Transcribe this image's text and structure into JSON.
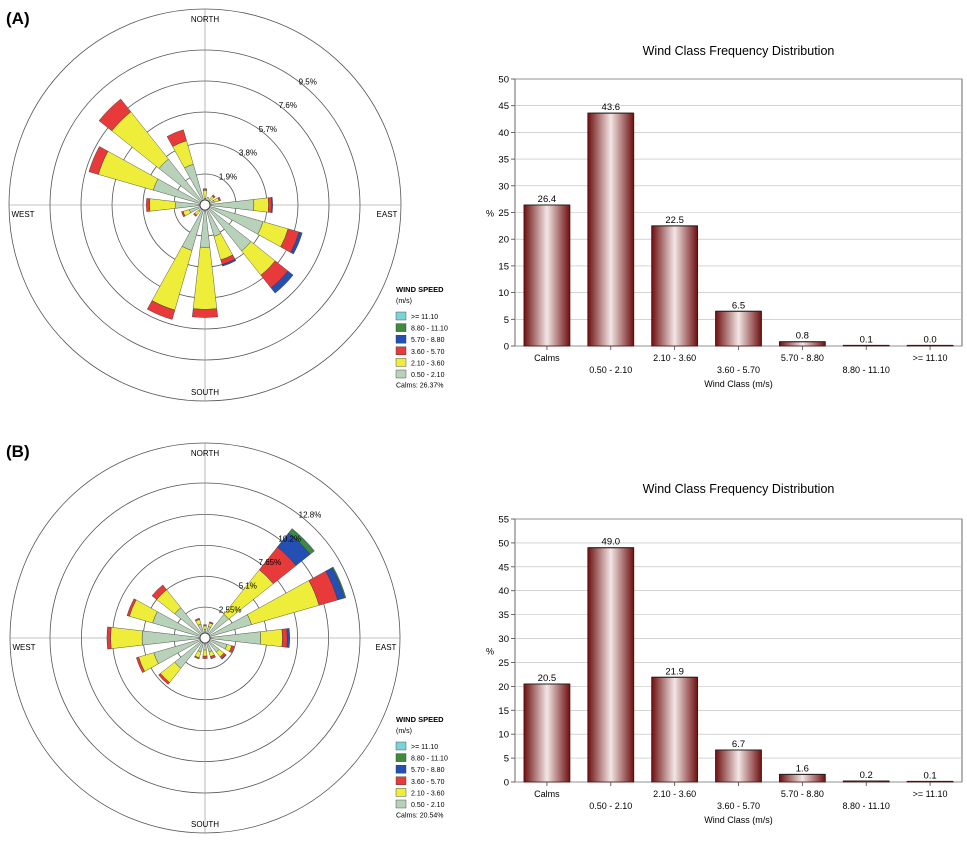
{
  "colors": {
    "s0": "#b7d2b9",
    "s1": "#eeee3a",
    "s2": "#e83a3a",
    "s3": "#2450b4",
    "s4": "#3f8a3f",
    "s5": "#7ad3d8",
    "bar_dark": "#6e1010",
    "bar_light": "#f3e6e6"
  },
  "chart_data": [
    {
      "type": "windrose",
      "panel_label": "(A)",
      "directions": [
        "NORTH",
        "EAST",
        "SOUTH",
        "WEST"
      ],
      "ring_labels": [
        "1.9%",
        "3.8%",
        "5.7%",
        "7.6%",
        "9.5%"
      ],
      "ring_values": [
        1.9,
        3.8,
        5.7,
        7.6,
        9.5
      ],
      "max_value": 9.5,
      "legend_title_1": "WIND SPEED",
      "legend_title_2": "(m/s)",
      "speed_classes": [
        ">= 11.10",
        "8.80 - 11.10",
        "5.70 - 8.80",
        "3.60 - 5.70",
        "2.10 - 3.60",
        "0.50 - 2.10"
      ],
      "calms": "Calms: 26.37%",
      "sectors": [
        {
          "dir": 0,
          "values": [
            0.4,
            0.5,
            0.1,
            0,
            0,
            0
          ]
        },
        {
          "dir": 22.5,
          "values": [
            0.3,
            0.2,
            0,
            0,
            0,
            0
          ]
        },
        {
          "dir": 45,
          "values": [
            0.4,
            0.3,
            0.1,
            0,
            0,
            0
          ]
        },
        {
          "dir": 67.5,
          "values": [
            0.6,
            0.3,
            0.1,
            0,
            0,
            0
          ]
        },
        {
          "dir": 90,
          "values": [
            3.0,
            0.9,
            0.2,
            0.05,
            0,
            0
          ]
        },
        {
          "dir": 112.5,
          "values": [
            3.7,
            1.6,
            0.7,
            0.2,
            0,
            0
          ]
        },
        {
          "dir": 135,
          "values": [
            3.6,
            1.9,
            1.0,
            0.4,
            0,
            0
          ]
        },
        {
          "dir": 157.5,
          "values": [
            2.0,
            1.5,
            0.3,
            0.1,
            0,
            0
          ]
        },
        {
          "dir": 180,
          "values": [
            2.6,
            3.8,
            0.5,
            0,
            0,
            0
          ]
        },
        {
          "dir": 202.5,
          "values": [
            2.9,
            3.8,
            0.6,
            0,
            0,
            0
          ]
        },
        {
          "dir": 225,
          "values": [
            0.5,
            0.3,
            0.1,
            0,
            0,
            0
          ]
        },
        {
          "dir": 247.5,
          "values": [
            1.0,
            0.4,
            0.1,
            0,
            0,
            0
          ]
        },
        {
          "dir": 270,
          "values": [
            1.8,
            1.6,
            0.2,
            0,
            0,
            0
          ]
        },
        {
          "dir": 292.5,
          "values": [
            3.3,
            3.5,
            0.6,
            0,
            0,
            0
          ]
        },
        {
          "dir": 315,
          "values": [
            3.6,
            3.7,
            1.0,
            0,
            0,
            0
          ]
        },
        {
          "dir": 337.5,
          "values": [
            2.6,
            1.5,
            0.7,
            0,
            0,
            0
          ]
        }
      ]
    },
    {
      "type": "bar",
      "title": "Wind Class Frequency Distribution",
      "xlabel": "Wind Class (m/s)",
      "ylabel": "%",
      "categories": [
        "Calms",
        "0.50 - 2.10",
        "2.10 - 3.60",
        "3.60 - 5.70",
        "5.70 - 8.80",
        "8.80 - 11.10",
        ">= 11.10"
      ],
      "values": [
        26.4,
        43.6,
        22.5,
        6.5,
        0.8,
        0.1,
        0.0
      ],
      "value_labels": [
        "26.4",
        "43.6",
        "22.5",
        "6.5",
        "0.8",
        "0.1",
        "0.0"
      ],
      "ylim": [
        0,
        50
      ],
      "yticks": [
        0,
        5,
        10,
        15,
        20,
        25,
        30,
        35,
        40,
        45,
        50
      ],
      "grid": true
    },
    {
      "type": "windrose",
      "panel_label": "(B)",
      "directions": [
        "NORTH",
        "EAST",
        "SOUTH",
        "WEST"
      ],
      "ring_labels": [
        "2.55%",
        "5.1%",
        "7.65%",
        "10.2%",
        "12.8%"
      ],
      "ring_values": [
        2.55,
        5.1,
        7.65,
        10.2,
        12.8
      ],
      "max_value": 12.8,
      "legend_title_1": "WIND SPEED",
      "legend_title_2": "(m/s)",
      "speed_classes": [
        ">= 11.10",
        "8.80 - 11.10",
        "5.70 - 8.80",
        "3.60 - 5.70",
        "2.10 - 3.60",
        "0.50 - 2.10"
      ],
      "calms": "Calms: 20.54%",
      "sectors": [
        {
          "dir": 0,
          "values": [
            0.7,
            0.3,
            0.1,
            0,
            0,
            0
          ]
        },
        {
          "dir": 22.5,
          "values": [
            1.0,
            0.3,
            0.1,
            0,
            0,
            0
          ]
        },
        {
          "dir": 45,
          "values": [
            2.5,
            4.7,
            2.4,
            1.5,
            0.4,
            0.05
          ]
        },
        {
          "dir": 67.5,
          "values": [
            4.0,
            5.8,
            1.6,
            0.6,
            0.1,
            0
          ]
        },
        {
          "dir": 90,
          "values": [
            4.6,
            1.8,
            0.4,
            0.2,
            0,
            0
          ]
        },
        {
          "dir": 112.5,
          "values": [
            1.9,
            0.4,
            0.2,
            0,
            0,
            0
          ]
        },
        {
          "dir": 135,
          "values": [
            1.5,
            0.5,
            0.2,
            0.05,
            0,
            0
          ]
        },
        {
          "dir": 157.5,
          "values": [
            1.2,
            0.4,
            0.2,
            0,
            0,
            0
          ]
        },
        {
          "dir": 180,
          "values": [
            1.0,
            0.5,
            0.2,
            0,
            0,
            0
          ]
        },
        {
          "dir": 202.5,
          "values": [
            1.2,
            0.5,
            0.1,
            0,
            0,
            0
          ]
        },
        {
          "dir": 225,
          "values": [
            3.2,
            1.5,
            0.2,
            0,
            0,
            0
          ]
        },
        {
          "dir": 247.5,
          "values": [
            4.4,
            1.3,
            0.2,
            0,
            0,
            0
          ]
        },
        {
          "dir": 270,
          "values": [
            5.2,
            2.6,
            0.3,
            0,
            0,
            0
          ]
        },
        {
          "dir": 292.5,
          "values": [
            4.5,
            2.0,
            0.2,
            0,
            0,
            0
          ]
        },
        {
          "dir": 315,
          "values": [
            3.2,
            1.9,
            0.5,
            0,
            0,
            0
          ]
        },
        {
          "dir": 337.5,
          "values": [
            1.2,
            0.4,
            0.1,
            0,
            0,
            0
          ]
        }
      ]
    },
    {
      "type": "bar",
      "title": "Wind Class Frequency Distribution",
      "xlabel": "Wind Class (m/s)",
      "ylabel": "%",
      "categories": [
        "Calms",
        "0.50 - 2.10",
        "2.10 - 3.60",
        "3.60 - 5.70",
        "5.70 - 8.80",
        "8.80 - 11.10",
        ">= 11.10"
      ],
      "values": [
        20.5,
        49.0,
        21.9,
        6.7,
        1.6,
        0.2,
        0.1
      ],
      "value_labels": [
        "20.5",
        "49.0",
        "21.9",
        "6.7",
        "1.6",
        "0.2",
        "0.1"
      ],
      "ylim": [
        0,
        55
      ],
      "yticks": [
        0,
        5,
        10,
        15,
        20,
        25,
        30,
        35,
        40,
        45,
        50,
        55
      ],
      "grid": true
    }
  ]
}
